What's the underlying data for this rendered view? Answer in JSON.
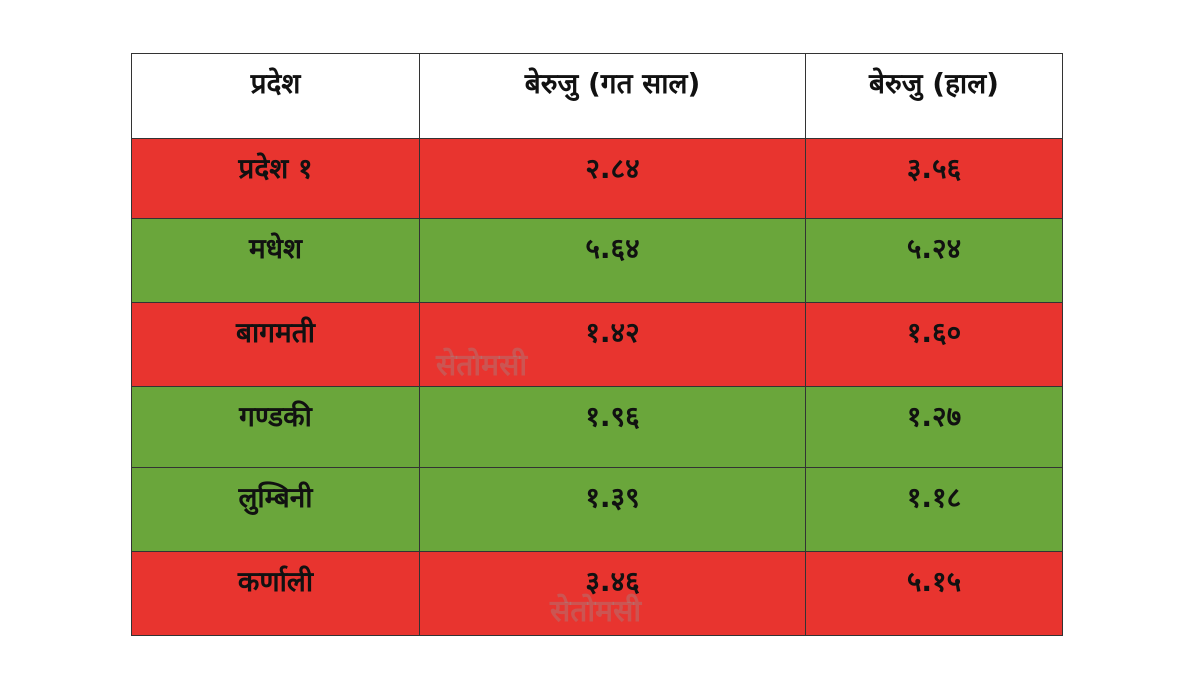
{
  "table": {
    "header": [
      "प्रदेश",
      "बेरुजु (गत साल)",
      "बेरुजु (हाल)"
    ],
    "rows": [
      [
        "प्रदेश १",
        "२.८४",
        "३.५६"
      ],
      [
        "मधेश",
        "५.६४",
        "५.२४"
      ],
      [
        "बागमती",
        "१.४२",
        "१.६०"
      ],
      [
        "गण्डकी",
        "१.९६",
        "१.२७"
      ],
      [
        "लुम्बिनी",
        "१.३९",
        "१.१८"
      ],
      [
        "कर्णाली",
        "३.४६",
        "५.१५"
      ]
    ],
    "row_colors": [
      "#e8342f",
      "#6aa63b",
      "#e8342f",
      "#6aa63b",
      "#6aa63b",
      "#e8342f"
    ]
  },
  "watermark": "सेतोमसी"
}
